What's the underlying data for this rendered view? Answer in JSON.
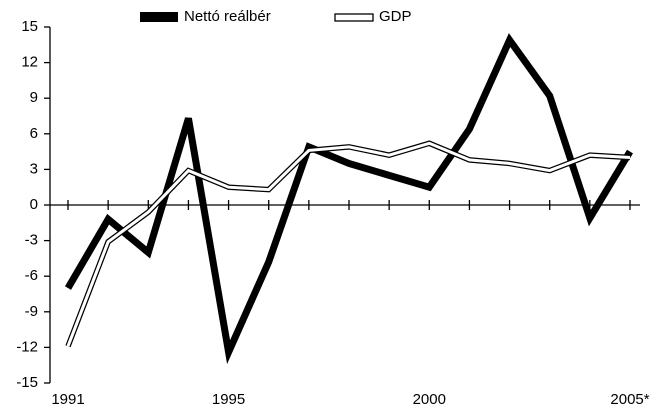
{
  "chart_data": {
    "type": "line",
    "categories": [
      "1991",
      null,
      null,
      null,
      "1995",
      null,
      null,
      null,
      null,
      "2000",
      null,
      null,
      null,
      null,
      "2005*"
    ],
    "series": [
      {
        "name": "Nettó reálbér",
        "color": "#000000",
        "values": [
          -7,
          -1.2,
          -4,
          7.3,
          -12.4,
          -4.8,
          4.9,
          3.5,
          2.5,
          1.5,
          6.4,
          13.9,
          9.2,
          -1.1,
          4.5
        ]
      },
      {
        "name": "GDP",
        "color": "#ffffff",
        "values": [
          -11.9,
          -3.1,
          -0.6,
          2.9,
          1.5,
          1.3,
          4.6,
          4.9,
          4.2,
          5.2,
          3.8,
          3.5,
          2.9,
          4.2,
          4.0
        ]
      }
    ],
    "ylim": [
      -15,
      15
    ],
    "yticks": [
      15,
      12,
      9,
      6,
      3,
      0,
      -3,
      -6,
      -9,
      -12,
      -15
    ]
  }
}
